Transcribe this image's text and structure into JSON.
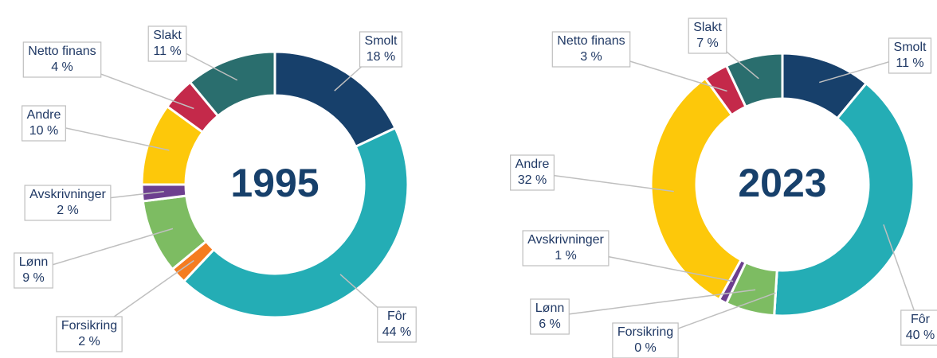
{
  "chart_data": [
    {
      "type": "donut",
      "title": "1995",
      "categories": [
        "Smolt",
        "Fôr",
        "Forsikring",
        "Lønn",
        "Avskrivninger",
        "Andre",
        "Netto finans",
        "Slakt"
      ],
      "values": [
        18,
        44,
        2,
        9,
        2,
        10,
        4,
        11
      ],
      "value_labels": [
        "18 %",
        "44 %",
        "2 %",
        "9 %",
        "2 %",
        "10 %",
        "4 %",
        "11 %"
      ],
      "colors": [
        "#17406b",
        "#24adb5",
        "#f57c20",
        "#7dbc62",
        "#6d3f8f",
        "#fdc80a",
        "#c4294a",
        "#2a6e6e"
      ]
    },
    {
      "type": "donut",
      "title": "2023",
      "categories": [
        "Smolt",
        "Fôr",
        "Forsikring",
        "Lønn",
        "Avskrivninger",
        "Andre",
        "Netto finans",
        "Slakt"
      ],
      "values": [
        11,
        40,
        0,
        6,
        1,
        32,
        3,
        7
      ],
      "value_labels": [
        "11 %",
        "40 %",
        "0 %",
        "6 %",
        "1 %",
        "32 %",
        "3 %",
        "7 %"
      ],
      "colors": [
        "#17406b",
        "#24adb5",
        "#f57c20",
        "#7dbc62",
        "#6d3f8f",
        "#fdc80a",
        "#c4294a",
        "#2a6e6e"
      ]
    }
  ]
}
